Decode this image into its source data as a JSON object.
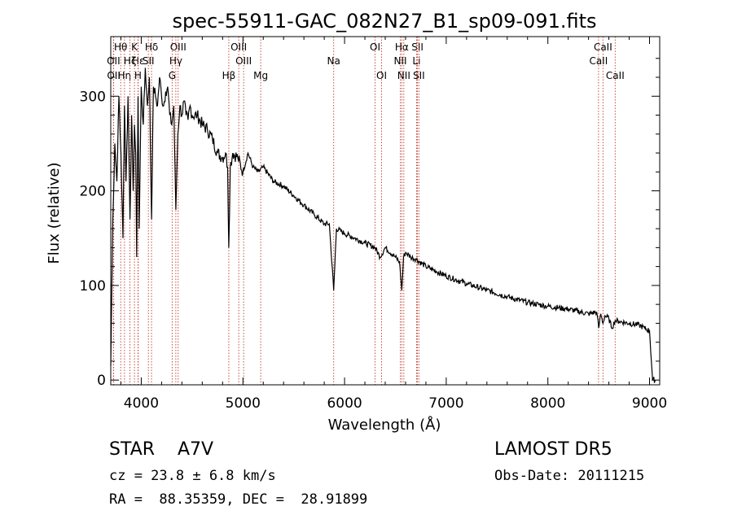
{
  "chart_data": {
    "type": "line",
    "title": "spec-55911-GAC_082N27_B1_sp09-091.fits",
    "xlabel": "Wavelength (Å)",
    "ylabel": "Flux (relative)",
    "xlim": [
      3700,
      9100
    ],
    "ylim": [
      -5,
      363
    ],
    "xticks": [
      4000,
      5000,
      6000,
      7000,
      8000,
      9000
    ],
    "yticks": [
      0,
      100,
      200,
      300
    ],
    "series": [
      {
        "x": [
          3700,
          3720,
          3740,
          3760,
          3780,
          3800,
          3820,
          3835,
          3850,
          3870,
          3889,
          3905,
          3920,
          3933,
          3945,
          3955,
          3968,
          3980,
          4000,
          4020,
          4040,
          4060,
          4080,
          4101,
          4120,
          4140,
          4160,
          4180,
          4200,
          4220,
          4240,
          4260,
          4280,
          4300,
          4320,
          4340,
          4360,
          4380,
          4400,
          4420,
          4440,
          4460,
          4480,
          4500,
          4550,
          4600,
          4650,
          4700,
          4750,
          4800,
          4830,
          4850,
          4861,
          4875,
          4900,
          4950,
          5000,
          5050,
          5100,
          5150,
          5200,
          5300,
          5400,
          5500,
          5600,
          5700,
          5800,
          5850,
          5893,
          5920,
          6000,
          6100,
          6200,
          6300,
          6350,
          6400,
          6500,
          6540,
          6563,
          6580,
          6600,
          6650,
          6700,
          6800,
          6900,
          7000,
          7200,
          7400,
          7600,
          7800,
          8000,
          8200,
          8400,
          8480,
          8500,
          8520,
          8542,
          8560,
          8600,
          8630,
          8662,
          8700,
          8800,
          8900,
          8950,
          9000,
          9030,
          9060
        ],
        "values": [
          15,
          170,
          250,
          210,
          300,
          240,
          150,
          290,
          210,
          300,
          170,
          280,
          200,
          270,
          240,
          130,
          300,
          160,
          310,
          270,
          330,
          290,
          320,
          170,
          310,
          300,
          290,
          320,
          300,
          290,
          305,
          310,
          280,
          270,
          290,
          180,
          260,
          290,
          280,
          295,
          280,
          275,
          290,
          280,
          280,
          270,
          265,
          255,
          240,
          235,
          240,
          225,
          140,
          225,
          240,
          235,
          220,
          240,
          225,
          220,
          225,
          210,
          205,
          195,
          185,
          175,
          165,
          165,
          95,
          160,
          155,
          150,
          145,
          140,
          130,
          140,
          130,
          125,
          95,
          130,
          135,
          130,
          128,
          120,
          115,
          110,
          102,
          95,
          88,
          82,
          78,
          75,
          70,
          72,
          55,
          70,
          60,
          68,
          65,
          55,
          63,
          62,
          60,
          58,
          55,
          52,
          0,
          0
        ]
      }
    ],
    "lines": [
      {
        "label": "Hθ",
        "x": 3798,
        "row": 0
      },
      {
        "label": "OII",
        "x": 3727,
        "row": 1
      },
      {
        "label": "OII",
        "x": 3729,
        "row": 2
      },
      {
        "label": "K",
        "x": 3933,
        "row": 0
      },
      {
        "label": "Hε",
        "x": 3970,
        "row": 1
      },
      {
        "label": "Hη",
        "x": 3835,
        "row": 2
      },
      {
        "label": "Hζ",
        "x": 3889,
        "row": 1
      },
      {
        "label": "H",
        "x": 3968,
        "row": 2
      },
      {
        "label": "Hδ",
        "x": 4101,
        "row": 0
      },
      {
        "label": "SII",
        "x": 4070,
        "row": 1
      },
      {
        "label": "OIII",
        "x": 4363,
        "row": 0
      },
      {
        "label": "Hγ",
        "x": 4340,
        "row": 1
      },
      {
        "label": "G",
        "x": 4304,
        "row": 2
      },
      {
        "label": "OIII",
        "x": 4959,
        "row": 0
      },
      {
        "label": "OIII",
        "x": 5007,
        "row": 1
      },
      {
        "label": "Hβ",
        "x": 4861,
        "row": 2
      },
      {
        "label": "Mg",
        "x": 5175,
        "row": 2
      },
      {
        "label": "Na",
        "x": 5893,
        "row": 1
      },
      {
        "label": "OI",
        "x": 6300,
        "row": 0
      },
      {
        "label": "OI",
        "x": 6364,
        "row": 2
      },
      {
        "label": "Hα",
        "x": 6563,
        "row": 0
      },
      {
        "label": "NII",
        "x": 6548,
        "row": 1
      },
      {
        "label": "NII",
        "x": 6583,
        "row": 2
      },
      {
        "label": "SII",
        "x": 6717,
        "row": 0
      },
      {
        "label": "Li",
        "x": 6708,
        "row": 1
      },
      {
        "label": "SII",
        "x": 6731,
        "row": 2
      },
      {
        "label": "CaII",
        "x": 8542,
        "row": 0
      },
      {
        "label": "CaII",
        "x": 8498,
        "row": 1
      },
      {
        "label": "CaII",
        "x": 8662,
        "row": 2
      }
    ]
  },
  "info": {
    "object": "STAR    A7V",
    "velocity": "cz = 23.8 ± 6.8 km/s",
    "coords": "RA =  88.35359, DEC =  28.91899",
    "survey": "LAMOST DR5",
    "obsdate": "Obs-Date: 20111215"
  }
}
